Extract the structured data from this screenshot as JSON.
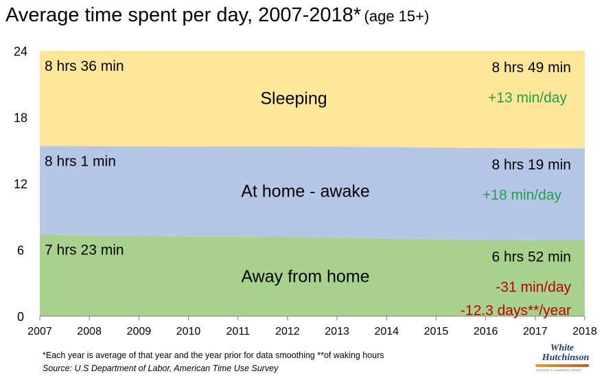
{
  "title": {
    "main": "Average time spent per day, 2007-2018*",
    "sub": "(age 15+)"
  },
  "chart_data": {
    "type": "area",
    "stacked": true,
    "x": [
      2007,
      2008,
      2009,
      2010,
      2011,
      2012,
      2013,
      2014,
      2015,
      2016,
      2017,
      2018
    ],
    "ylim": [
      0,
      24
    ],
    "yticks": [
      0,
      6,
      12,
      18,
      24
    ],
    "grid": false,
    "series": [
      {
        "name": "Away from home",
        "color": "#a9d18e",
        "values": [
          7.38,
          7.3,
          7.27,
          7.2,
          7.2,
          7.17,
          7.1,
          7.03,
          6.95,
          6.9,
          6.88,
          6.87
        ],
        "label_start": "7 hrs 23 min",
        "label_end": "6 hrs 52 min",
        "changes": [
          "-31 min/day",
          "-12.3 days**/year"
        ],
        "change_color": "#c00000"
      },
      {
        "name": "At home - awake",
        "color": "#b4c7e7",
        "values": [
          8.02,
          8.08,
          8.1,
          8.14,
          8.17,
          8.2,
          8.24,
          8.27,
          8.3,
          8.3,
          8.31,
          8.32
        ],
        "label_start": "8 hrs 1 min",
        "label_end": "8 hrs 19 min",
        "changes": [
          "+18 min/day"
        ],
        "change_color": "#1ea046"
      },
      {
        "name": "Sleeping",
        "color": "#ffe699",
        "values": [
          8.6,
          8.62,
          8.63,
          8.66,
          8.63,
          8.63,
          8.66,
          8.7,
          8.75,
          8.8,
          8.81,
          8.81
        ],
        "label_start": "8 hrs 36 min",
        "label_end": "8 hrs 49 min",
        "changes": [
          "+13 min/day"
        ],
        "change_color": "#1ea046"
      }
    ]
  },
  "footnote": "*Each year is average of that year and the year prior for data smoothing  **of waking hours",
  "source": "Source: U.S Department of Labor, American Time Use Survey",
  "logo": {
    "line1": "White",
    "line2": "Hutchinson",
    "colors": [
      "#1f3b7a",
      "#e59a2c"
    ]
  }
}
